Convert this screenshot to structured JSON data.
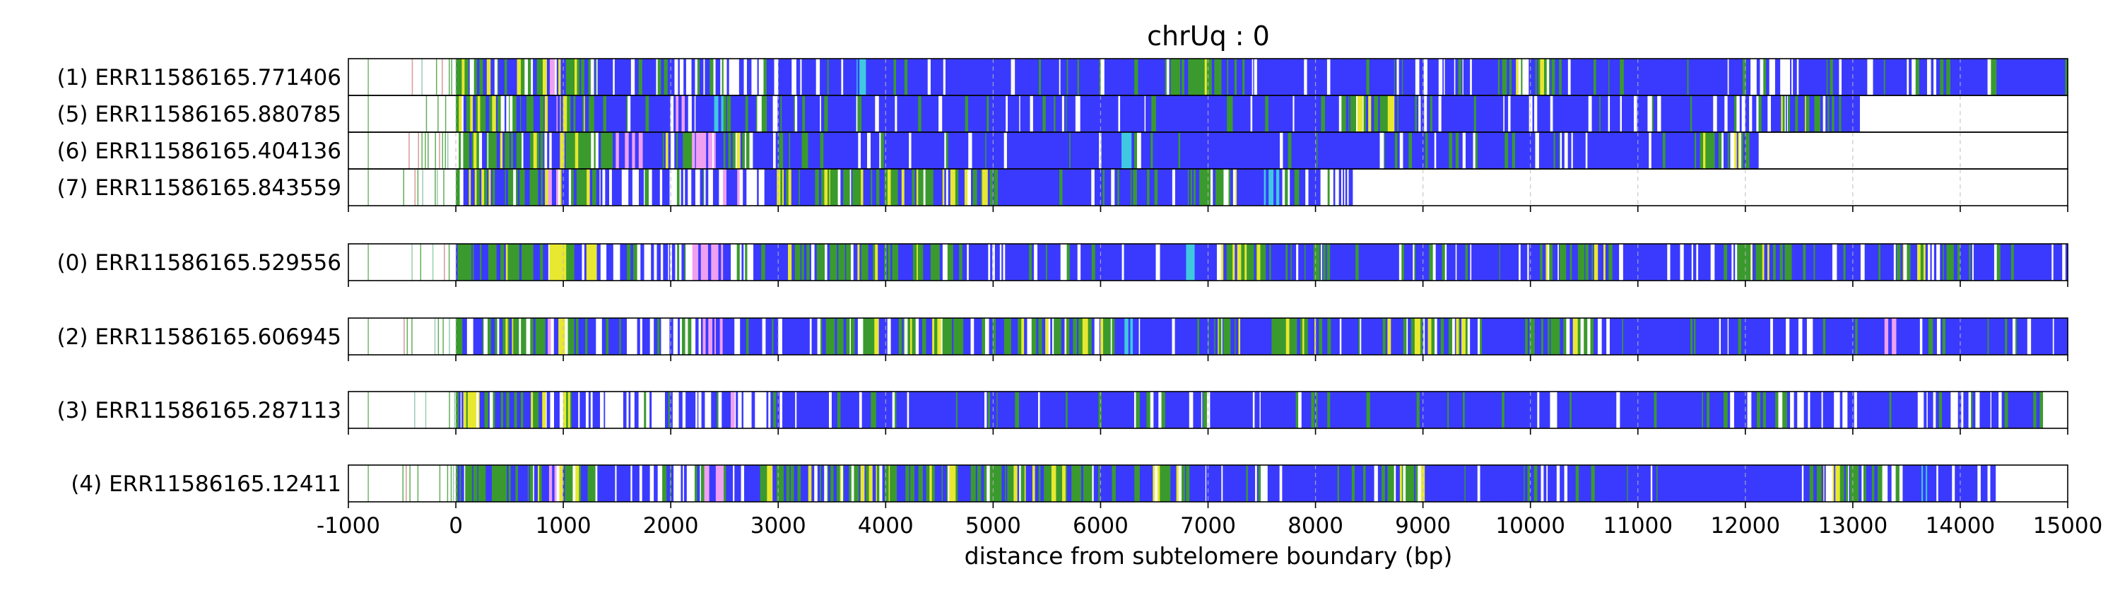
{
  "chart_data": {
    "type": "heatmap",
    "title": "chrUq : 0",
    "xlabel": "distance from subtelomere boundary (bp)",
    "ylabel": "",
    "xlim": [
      -1000,
      15000
    ],
    "xticks": [
      -1000,
      0,
      1000,
      2000,
      3000,
      4000,
      5000,
      6000,
      7000,
      8000,
      9000,
      10000,
      11000,
      12000,
      13000,
      14000,
      15000
    ],
    "xtick_labels": [
      "-1000",
      "0",
      "1000",
      "2000",
      "3000",
      "4000",
      "5000",
      "6000",
      "7000",
      "8000",
      "9000",
      "10000",
      "11000",
      "12000",
      "13000",
      "14000",
      "15000"
    ],
    "grid": "vertical dashed lines at x ticks",
    "colors": {
      "base": "#3a3aff",
      "green": "#3a9a2e",
      "yellow": "#e8e830",
      "pink": "#f0a0f0",
      "cyan": "#40c8e0",
      "white": "#ffffff",
      "grid": "#bbbbbb"
    },
    "groups": [
      {
        "reads": [
          {
            "label": "(1) ERR11586165.771406",
            "start": -1000,
            "end": 14990,
            "dense_green": [
              [
                0,
                1300
              ],
              [
                6600,
                7200
              ],
              [
                9700,
                10000
              ],
              [
                10100,
                10300
              ]
            ],
            "white_zones": [
              [
                1400,
                3000
              ],
              [
                8900,
                9500
              ],
              [
                12000,
                12500
              ],
              [
                13500,
                13900
              ]
            ],
            "pink": [
              [
                850,
                950
              ]
            ],
            "cyan": [
              [
                3700,
                3800
              ],
              [
                13600,
                13700
              ]
            ]
          },
          {
            "label": "(5) ERR11586165.880785",
            "start": -1000,
            "end": 13060,
            "dense_green": [
              [
                0,
                1400
              ],
              [
                8200,
                8800
              ],
              [
                12300,
                12900
              ]
            ],
            "white_zones": [
              [
                2700,
                3100
              ],
              [
                11800,
                12300
              ]
            ],
            "pink": [
              [
                870,
                950
              ],
              [
                2050,
                2150
              ]
            ],
            "cyan": [
              [
                2400,
                2500
              ]
            ]
          },
          {
            "label": "(6) ERR11586165.404136",
            "start": -1000,
            "end": 12100,
            "dense_green": [
              [
                0,
                1500
              ],
              [
                1900,
                2800
              ],
              [
                11500,
                12000
              ]
            ],
            "white_zones": [
              [
                1500,
                2500
              ]
            ],
            "pink": [
              [
                1500,
                1900
              ],
              [
                2200,
                2450
              ]
            ],
            "cyan": [
              [
                6200,
                6300
              ]
            ]
          },
          {
            "label": "(7) ERR11586165.843559",
            "start": -1000,
            "end": 8320,
            "dense_green": [
              [
                0,
                1300
              ],
              [
                3000,
                5000
              ],
              [
                6800,
                7300
              ]
            ],
            "white_zones": [
              [
                1300,
                2900
              ],
              [
                7600,
                8320
              ]
            ],
            "pink": [
              [
                850,
                950
              ],
              [
                2500,
                2650
              ]
            ],
            "cyan": [
              [
                7500,
                7700
              ]
            ]
          }
        ]
      },
      {
        "reads": [
          {
            "label": "(0) ERR11586165.529556",
            "start": -1000,
            "end": 14990,
            "dense_green": [
              [
                0,
                1300
              ],
              [
                3000,
                4700
              ],
              [
                7100,
                7600
              ],
              [
                10100,
                10900
              ],
              [
                11900,
                12500
              ],
              [
                13400,
                14000
              ]
            ],
            "white_zones": [
              [
                1300,
                2900
              ],
              [
                7000,
                7200
              ]
            ],
            "pink": [
              [
                2200,
                2500
              ]
            ],
            "cyan": [
              [
                6800,
                6900
              ]
            ]
          }
        ]
      },
      {
        "reads": [
          {
            "label": "(2) ERR11586165.606945",
            "start": -1000,
            "end": 14990,
            "dense_green": [
              [
                0,
                1300
              ],
              [
                3400,
                4700
              ],
              [
                5100,
                6100
              ],
              [
                6900,
                7300
              ],
              [
                7600,
                8200
              ],
              [
                8600,
                9400
              ],
              [
                10000,
                10600
              ]
            ],
            "white_zones": [
              [
                1300,
                2600
              ]
            ],
            "pink": [
              [
                850,
                950
              ],
              [
                2300,
                2500
              ],
              [
                13300,
                13500
              ]
            ],
            "cyan": [
              [
                2450,
                2550
              ],
              [
                6200,
                6300
              ]
            ]
          }
        ]
      },
      {
        "reads": [
          {
            "label": "(3) ERR11586165.287113",
            "start": -1000,
            "end": 14750,
            "dense_green": [
              [
                0,
                1100
              ],
              [
                6300,
                6600
              ]
            ],
            "white_zones": [
              [
                800,
                3000
              ],
              [
                12000,
                13000
              ],
              [
                13600,
                14200
              ]
            ],
            "pink": [
              [
                2500,
                2600
              ]
            ],
            "cyan": []
          }
        ]
      },
      {
        "reads": [
          {
            "label": "(4) ERR11586165.12411",
            "start": -1000,
            "end": 14320,
            "dense_green": [
              [
                0,
                1300
              ],
              [
                2800,
                6000
              ],
              [
                6400,
                6900
              ],
              [
                8600,
                9000
              ],
              [
                12500,
                13300
              ]
            ],
            "white_zones": [
              [
                1600,
                2600
              ],
              [
                13000,
                13500
              ]
            ],
            "pink": [
              [
                850,
                950
              ],
              [
                2300,
                2500
              ]
            ],
            "cyan": [
              [
                13600,
                13700
              ]
            ]
          }
        ]
      }
    ]
  }
}
